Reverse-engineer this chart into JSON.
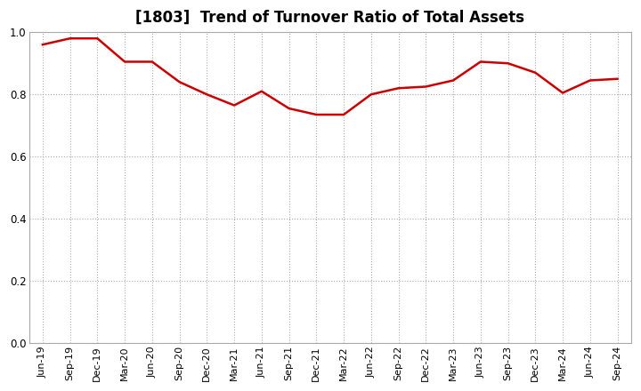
{
  "title": "[1803]  Trend of Turnover Ratio of Total Assets",
  "labels": [
    "Jun-19",
    "Sep-19",
    "Dec-19",
    "Mar-20",
    "Jun-20",
    "Sep-20",
    "Dec-20",
    "Mar-21",
    "Jun-21",
    "Sep-21",
    "Dec-21",
    "Mar-22",
    "Jun-22",
    "Sep-22",
    "Dec-22",
    "Mar-23",
    "Jun-23",
    "Sep-23",
    "Dec-23",
    "Mar-24",
    "Jun-24",
    "Sep-24"
  ],
  "values": [
    0.96,
    0.98,
    0.98,
    0.905,
    0.905,
    0.84,
    0.8,
    0.765,
    0.81,
    0.755,
    0.735,
    0.735,
    0.8,
    0.82,
    0.825,
    0.845,
    0.905,
    0.9,
    0.87,
    0.805,
    0.845,
    0.85
  ],
  "line_color": "#cc0000",
  "line_width": 1.8,
  "ylim": [
    0.0,
    1.0
  ],
  "yticks": [
    0.0,
    0.2,
    0.4,
    0.6,
    0.8,
    1.0
  ],
  "grid_color": "#aaaaaa",
  "bg_color": "#ffffff",
  "plot_bg_color": "#ffffff",
  "title_fontsize": 12,
  "tick_fontsize": 8.0
}
